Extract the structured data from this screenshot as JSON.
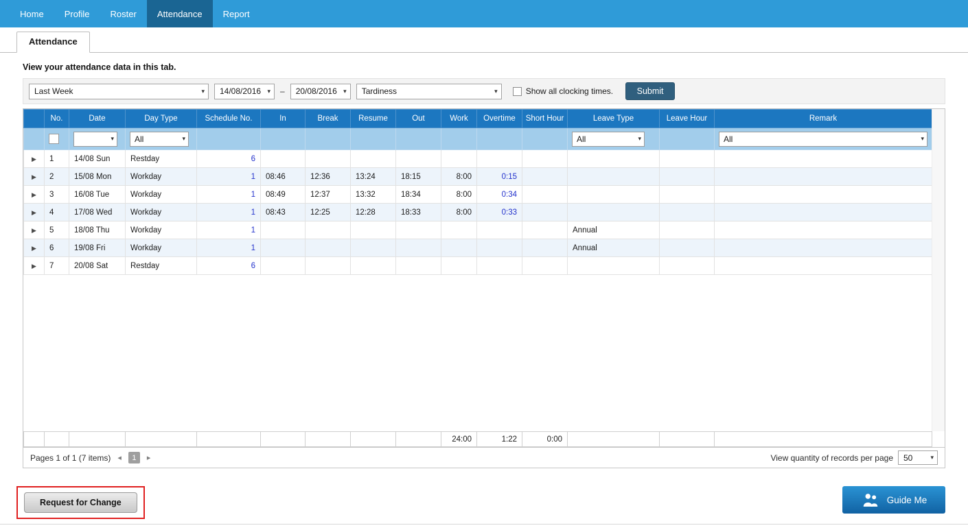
{
  "nav": {
    "items": [
      {
        "label": "Home"
      },
      {
        "label": "Profile"
      },
      {
        "label": "Roster"
      },
      {
        "label": "Attendance"
      },
      {
        "label": "Report"
      }
    ]
  },
  "tab": {
    "label": "Attendance"
  },
  "intro": "View your attendance data in this tab.",
  "filters": {
    "period": "Last Week",
    "date_from": "14/08/2016",
    "date_separator": "–",
    "date_to": "20/08/2016",
    "category": "Tardiness",
    "show_all_label": "Show all clocking times.",
    "submit_label": "Submit"
  },
  "table": {
    "headers": [
      "No.",
      "Date",
      "Day Type",
      "Schedule No.",
      "In",
      "Break",
      "Resume",
      "Out",
      "Work",
      "Overtime",
      "Short Hour",
      "Leave Type",
      "Leave Hour",
      "Remark"
    ],
    "filter_row": {
      "day_type": "All",
      "leave_type": "All",
      "remark": "All"
    },
    "rows": [
      {
        "no": "1",
        "date": "14/08 Sun",
        "day_type": "Restday",
        "schedule_no": "6",
        "in": "",
        "break": "",
        "resume": "",
        "out": "",
        "work": "",
        "overtime": "",
        "short_hour": "",
        "leave_type": "",
        "leave_hour": "",
        "remark": ""
      },
      {
        "no": "2",
        "date": "15/08 Mon",
        "day_type": "Workday",
        "schedule_no": "1",
        "in": "08:46",
        "break": "12:36",
        "resume": "13:24",
        "out": "18:15",
        "work": "8:00",
        "overtime": "0:15",
        "short_hour": "",
        "leave_type": "",
        "leave_hour": "",
        "remark": ""
      },
      {
        "no": "3",
        "date": "16/08 Tue",
        "day_type": "Workday",
        "schedule_no": "1",
        "in": "08:49",
        "break": "12:37",
        "resume": "13:32",
        "out": "18:34",
        "work": "8:00",
        "overtime": "0:34",
        "short_hour": "",
        "leave_type": "",
        "leave_hour": "",
        "remark": ""
      },
      {
        "no": "4",
        "date": "17/08 Wed",
        "day_type": "Workday",
        "schedule_no": "1",
        "in": "08:43",
        "break": "12:25",
        "resume": "12:28",
        "out": "18:33",
        "work": "8:00",
        "overtime": "0:33",
        "short_hour": "",
        "leave_type": "",
        "leave_hour": "",
        "remark": ""
      },
      {
        "no": "5",
        "date": "18/08 Thu",
        "day_type": "Workday",
        "schedule_no": "1",
        "in": "",
        "break": "",
        "resume": "",
        "out": "",
        "work": "",
        "overtime": "",
        "short_hour": "",
        "leave_type": "Annual",
        "leave_hour": "",
        "remark": ""
      },
      {
        "no": "6",
        "date": "19/08 Fri",
        "day_type": "Workday",
        "schedule_no": "1",
        "in": "",
        "break": "",
        "resume": "",
        "out": "",
        "work": "",
        "overtime": "",
        "short_hour": "",
        "leave_type": "Annual",
        "leave_hour": "",
        "remark": ""
      },
      {
        "no": "7",
        "date": "20/08 Sat",
        "day_type": "Restday",
        "schedule_no": "6",
        "in": "",
        "break": "",
        "resume": "",
        "out": "",
        "work": "",
        "overtime": "",
        "short_hour": "",
        "leave_type": "",
        "leave_hour": "",
        "remark": ""
      }
    ],
    "summary": {
      "work": "24:00",
      "overtime": "1:22",
      "short_hour": "0:00"
    }
  },
  "pagination": {
    "label": "Pages 1 of 1 (7 items)",
    "current_page": "1",
    "records_label": "View quantity of records per page",
    "records_value": "50"
  },
  "actions": {
    "request_change": "Request for Change",
    "guide_me": "Guide Me"
  },
  "colors": {
    "nav_blue": "#2f9bd8",
    "nav_active": "#1a6593",
    "header_blue": "#1c77c0",
    "filter_row_blue": "#a2cdeb",
    "alt_row": "#edf4fb",
    "link_blue": "#2332cc",
    "negative_red": "#cc0000",
    "submit_btn": "#305f7e",
    "guide_top": "#2a93d4",
    "guide_bottom": "#1162a3",
    "annotation_red": "#e01f1f"
  }
}
